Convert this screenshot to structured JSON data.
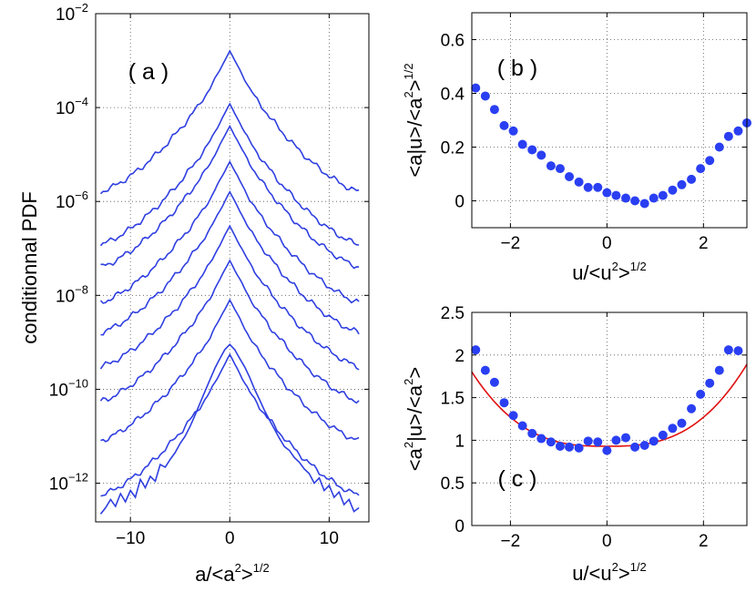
{
  "chart_data": [
    {
      "panel": "(a)",
      "type": "line",
      "scale_y": "log",
      "xlabel": {
        "base": "a/<a",
        "sup1": "2",
        "mid": ">",
        "sup2": "1/2"
      },
      "ylabel": "conditionnal PDF",
      "xlim": [
        -13.5,
        14
      ],
      "ylim": [
        1.5e-13,
        0.01
      ],
      "xticks": [
        -10,
        0,
        10
      ],
      "yticks": [
        {
          "value": 0.01,
          "base": "10",
          "exp": "-2"
        },
        {
          "value": 0.0001,
          "base": "10",
          "exp": "-4"
        },
        {
          "value": 1e-06,
          "base": "10",
          "exp": "-6"
        },
        {
          "value": 1e-08,
          "base": "10",
          "exp": "-8"
        },
        {
          "value": 1e-10,
          "base": "10",
          "exp": "-10"
        },
        {
          "value": 1e-12,
          "base": "10",
          "exp": "-12"
        }
      ],
      "grid": true,
      "line_color": "#2f3fe0",
      "series_shape": {
        "x": [
          0,
          0.5,
          1,
          2,
          3,
          4,
          5,
          6,
          7,
          8,
          9,
          10,
          11,
          12,
          13
        ],
        "log10_drop": [
          0,
          0.2,
          0.4,
          0.8,
          1.12,
          1.4,
          1.66,
          1.9,
          2.12,
          2.32,
          2.5,
          2.66,
          2.8,
          2.92,
          3.0
        ]
      },
      "series": [
        {
          "peak": 0.0016
        },
        {
          "peak": 0.00012
        },
        {
          "peak": 4e-05
        },
        {
          "peak": 7e-06
        },
        {
          "peak": 1.6e-06
        },
        {
          "peak": 3e-07
        },
        {
          "peak": 5.5e-08
        },
        {
          "peak": 8e-09
        },
        {
          "peak": 5.5e-10
        }
      ],
      "noisy_tails_series": [
        {
          "left": [
            [
              -13,
              2.2e-13
            ],
            [
              -12.5,
              3e-13
            ],
            [
              -12,
              4.5e-13
            ],
            [
              -11.5,
              3.2e-13
            ],
            [
              -11,
              6e-13
            ],
            [
              -10.5,
              4e-13
            ],
            [
              -10,
              7e-13
            ],
            [
              -9.5,
              5e-13
            ],
            [
              -9,
              1.2e-12
            ],
            [
              -8.5,
              8e-13
            ],
            [
              -8,
              1.4e-12
            ],
            [
              -7.5,
              1.1e-12
            ],
            [
              -7,
              2.5e-12
            ],
            [
              -6.5,
              2.2e-12
            ],
            [
              -6,
              3.2e-12
            ],
            [
              -5.5,
              4.5e-12
            ],
            [
              -5,
              7e-12
            ],
            [
              -4.5,
              1e-11
            ],
            [
              -4,
              1.6e-11
            ],
            [
              -3.5,
              2.8e-11
            ],
            [
              -3,
              5e-11
            ],
            [
              -2.5,
              9e-11
            ],
            [
              -2,
              1.6e-10
            ],
            [
              -1.5,
              2.8e-10
            ],
            [
              -1,
              4.5e-10
            ],
            [
              -0.5,
              7e-10
            ],
            [
              0,
              9e-10
            ]
          ],
          "right": [
            [
              0.5,
              7e-10
            ],
            [
              1,
              4.5e-10
            ],
            [
              1.5,
              3e-10
            ],
            [
              2,
              1.8e-10
            ],
            [
              2.5,
              1e-10
            ],
            [
              3,
              6e-11
            ],
            [
              3.5,
              3.5e-11
            ],
            [
              4,
              2.2e-11
            ],
            [
              4.5,
              1.4e-11
            ],
            [
              5,
              9e-12
            ],
            [
              5.5,
              6e-12
            ],
            [
              6,
              5e-12
            ],
            [
              6.5,
              3.5e-12
            ],
            [
              7,
              2.8e-12
            ],
            [
              7.5,
              2e-12
            ],
            [
              8,
              1.6e-12
            ],
            [
              8.5,
              1e-12
            ],
            [
              9,
              1.3e-12
            ],
            [
              9.5,
              7e-13
            ],
            [
              10,
              9e-13
            ],
            [
              10.5,
              5e-13
            ],
            [
              11,
              6.5e-13
            ],
            [
              11.5,
              3.5e-13
            ],
            [
              12,
              4.5e-13
            ],
            [
              12.5,
              2.5e-13
            ],
            [
              13,
              3e-13
            ]
          ]
        }
      ],
      "label": "( a )"
    },
    {
      "panel": "(b)",
      "type": "scatter",
      "xlabel": {
        "base": "u/<u",
        "sup1": "2",
        "mid": ">",
        "sup2": "1/2"
      },
      "ylabel": {
        "base": "<a|u>/<a",
        "sup1": "2",
        "mid": ">",
        "sup2": "1/2"
      },
      "xlim": [
        -2.8,
        2.9
      ],
      "ylim": [
        -0.1,
        0.7
      ],
      "xticks": [
        -2,
        0,
        2
      ],
      "yticks": [
        0,
        0.2,
        0.4,
        0.6
      ],
      "grid": true,
      "marker_color": "#2a3ff2",
      "x": [
        -2.72,
        -2.52,
        -2.33,
        -2.13,
        -1.94,
        -1.75,
        -1.55,
        -1.36,
        -1.16,
        -0.97,
        -0.78,
        -0.58,
        -0.39,
        -0.19,
        0,
        0.19,
        0.39,
        0.58,
        0.78,
        0.97,
        1.16,
        1.36,
        1.55,
        1.75,
        1.94,
        2.13,
        2.33,
        2.52,
        2.72,
        2.9
      ],
      "y": [
        0.42,
        0.39,
        0.34,
        0.28,
        0.26,
        0.21,
        0.19,
        0.17,
        0.13,
        0.12,
        0.09,
        0.07,
        0.05,
        0.05,
        0.03,
        0.02,
        0.01,
        0.0,
        -0.01,
        0.01,
        0.02,
        0.04,
        0.06,
        0.08,
        0.12,
        0.15,
        0.2,
        0.24,
        0.26,
        0.29
      ],
      "label": "( b )"
    },
    {
      "panel": "(c)",
      "type": "scatter",
      "xlabel": {
        "base": "u/<u",
        "sup1": "2",
        "mid": ">",
        "sup2": "1/2"
      },
      "ylabel": {
        "base": "<a",
        "sup1": "2",
        "mid": "|u>/<a",
        "sup2": "2",
        "end": ">"
      },
      "xlim": [
        -2.8,
        2.9
      ],
      "ylim": [
        0,
        2.5
      ],
      "xticks": [
        -2,
        0,
        2
      ],
      "yticks": [
        0,
        0.5,
        1,
        1.5,
        2,
        2.5
      ],
      "grid": true,
      "marker_color": "#2a3ff2",
      "fit_color": "#e01010",
      "fit": {
        "base": 0.93,
        "coef": 0.34,
        "power": 2.8
      },
      "x": [
        -2.72,
        -2.52,
        -2.33,
        -2.13,
        -1.94,
        -1.75,
        -1.55,
        -1.36,
        -1.16,
        -0.97,
        -0.78,
        -0.58,
        -0.39,
        -0.19,
        0,
        0.19,
        0.39,
        0.58,
        0.78,
        0.97,
        1.16,
        1.36,
        1.55,
        1.75,
        1.94,
        2.13,
        2.33,
        2.52,
        2.72
      ],
      "y": [
        2.06,
        1.82,
        1.68,
        1.44,
        1.29,
        1.17,
        1.08,
        1.02,
        0.98,
        0.93,
        0.92,
        0.91,
        0.99,
        0.98,
        0.88,
        1.0,
        1.03,
        0.92,
        0.94,
        0.99,
        1.06,
        1.14,
        1.2,
        1.37,
        1.54,
        1.67,
        1.82,
        2.06,
        2.05
      ],
      "label": "( c )"
    }
  ]
}
